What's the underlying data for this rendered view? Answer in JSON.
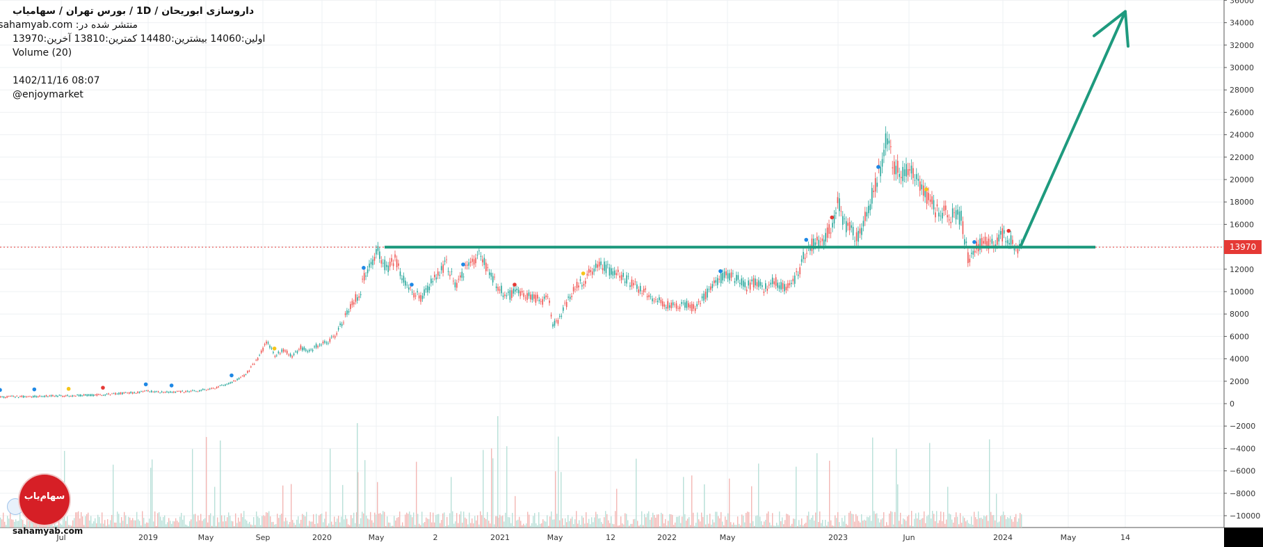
{
  "header": {
    "title": "داروسازی  ابوریحان  /  1D  /  بورس تهران / سهامیاب",
    "published": "منتشر شده در: sahamyab.com",
    "ohlc": "اولین:14060  بیشترین:14480  کمترین:13810  آخرین:13970",
    "volume_label": "Volume (20)",
    "datetime": "1402/11/16 08:07",
    "author": "@enjoymarket"
  },
  "price_tag": "13970",
  "brand": {
    "logo_text": "سهام‌یاب",
    "site": "sahamyab.com"
  },
  "colors": {
    "up": "#26a69a",
    "down": "#ef5350",
    "annotation": "#1e9a7e",
    "last_price_line": "#e53935",
    "grid": "#eef0f3"
  },
  "chart_data": {
    "type": "line",
    "y_axis_labels": [
      "36000",
      "34000",
      "32000",
      "30000",
      "28000",
      "26000",
      "24000",
      "22000",
      "20000",
      "18000",
      "16000",
      "14000",
      "12000",
      "10000",
      "8000",
      "6000",
      "4000",
      "2000",
      "0",
      "−2000",
      "−4000",
      "−6000",
      "−8000",
      "−10000"
    ],
    "ylim": [
      -11000,
      36000
    ],
    "x_tick_labels": [
      "Jul",
      "2019",
      "May",
      "Sep",
      "2020",
      "May",
      "2",
      "2021",
      "May",
      "12",
      "2022",
      "May",
      "2023",
      "Jun",
      "2024",
      "May",
      "14"
    ],
    "last_price": 13970,
    "series": [
      {
        "values": [
          [
            0,
            600
          ],
          [
            20,
            650
          ],
          [
            40,
            700
          ],
          [
            60,
            800
          ],
          [
            75,
            950
          ],
          [
            85,
            1100
          ],
          [
            100,
            1000
          ],
          [
            115,
            1150
          ],
          [
            125,
            1400
          ],
          [
            135,
            1900
          ],
          [
            140,
            2300
          ],
          [
            143,
            2600
          ],
          [
            150,
            4000
          ],
          [
            155,
            5500
          ],
          [
            160,
            4300
          ],
          [
            165,
            4800
          ],
          [
            170,
            4200
          ],
          [
            175,
            5000
          ],
          [
            180,
            4700
          ],
          [
            185,
            5200
          ],
          [
            190,
            5500
          ],
          [
            195,
            6000
          ],
          [
            200,
            7500
          ],
          [
            205,
            9000
          ],
          [
            210,
            10000
          ],
          [
            212,
            11500
          ],
          [
            215,
            12500
          ],
          [
            220,
            13500
          ],
          [
            225,
            12000
          ],
          [
            230,
            12800
          ],
          [
            235,
            11000
          ],
          [
            240,
            10000
          ],
          [
            245,
            9500
          ],
          [
            250,
            10500
          ],
          [
            255,
            11500
          ],
          [
            260,
            12500
          ],
          [
            265,
            10500
          ],
          [
            270,
            11800
          ],
          [
            275,
            12800
          ],
          [
            280,
            13200
          ],
          [
            285,
            11500
          ],
          [
            290,
            10500
          ],
          [
            295,
            9500
          ],
          [
            300,
            10000
          ],
          [
            305,
            9800
          ],
          [
            310,
            9500
          ],
          [
            315,
            9200
          ],
          [
            320,
            9300
          ],
          [
            322,
            7000
          ],
          [
            326,
            7500
          ],
          [
            330,
            9000
          ],
          [
            335,
            10500
          ],
          [
            340,
            11000
          ],
          [
            345,
            12000
          ],
          [
            350,
            12500
          ],
          [
            355,
            11800
          ],
          [
            360,
            11500
          ],
          [
            365,
            11000
          ],
          [
            370,
            10500
          ],
          [
            375,
            10000
          ],
          [
            380,
            9500
          ],
          [
            385,
            9000
          ],
          [
            390,
            8800
          ],
          [
            395,
            8700
          ],
          [
            400,
            8800
          ],
          [
            405,
            8500
          ],
          [
            410,
            9500
          ],
          [
            415,
            10500
          ],
          [
            420,
            11200
          ],
          [
            425,
            11500
          ],
          [
            430,
            11000
          ],
          [
            435,
            10500
          ],
          [
            440,
            10800
          ],
          [
            445,
            10200
          ],
          [
            450,
            11000
          ],
          [
            455,
            10500
          ],
          [
            460,
            10500
          ],
          [
            465,
            11500
          ],
          [
            470,
            14000
          ],
          [
            475,
            14300
          ],
          [
            480,
            14500
          ],
          [
            485,
            16000
          ],
          [
            488,
            18500
          ],
          [
            492,
            16000
          ],
          [
            496,
            15500
          ],
          [
            500,
            14800
          ],
          [
            504,
            16500
          ],
          [
            508,
            18500
          ],
          [
            512,
            20500
          ],
          [
            516,
            23500
          ],
          [
            520,
            21500
          ],
          [
            525,
            20500
          ],
          [
            530,
            21000
          ],
          [
            535,
            19500
          ],
          [
            540,
            18500
          ],
          [
            545,
            17200
          ],
          [
            550,
            17000
          ],
          [
            555,
            16800
          ],
          [
            560,
            16500
          ],
          [
            564,
            13000
          ],
          [
            568,
            13800
          ],
          [
            572,
            14500
          ],
          [
            576,
            14200
          ],
          [
            580,
            14500
          ],
          [
            584,
            15000
          ],
          [
            588,
            14800
          ],
          [
            592,
            14000
          ],
          [
            596,
            13970
          ]
        ]
      }
    ],
    "annotations": {
      "support_level": 13970,
      "projection_target": 35000
    },
    "volume": "Volume (20)",
    "grid": true,
    "legend": "none"
  }
}
